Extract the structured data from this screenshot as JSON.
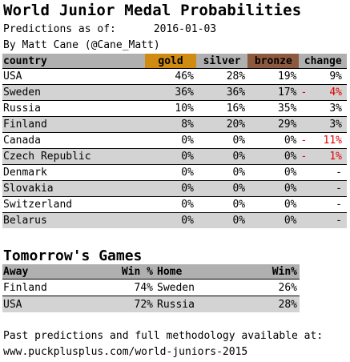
{
  "title": "World Junior Medal Probabilities",
  "predictions_label": "Predictions as of:",
  "predictions_date": "2016-01-03",
  "byline": "By Matt Cane (@Cane_Matt)",
  "colors": {
    "gold": "#d08b12",
    "bronze": "#8e5a3f",
    "header": "#b0b0b0",
    "alt_row": "#d3d3d3",
    "negative": "#e00000"
  },
  "medals": {
    "headers": {
      "country": "country",
      "gold": "gold",
      "silver": "silver",
      "bronze": "bronze",
      "change": "change"
    },
    "rows": [
      {
        "country": "USA",
        "gold": "46%",
        "silver": "28%",
        "bronze": "19%",
        "change_sign": "",
        "change": "9%",
        "negative": false
      },
      {
        "country": "Sweden",
        "gold": "36%",
        "silver": "36%",
        "bronze": "17%",
        "change_sign": "-",
        "change": "4%",
        "negative": true
      },
      {
        "country": "Russia",
        "gold": "10%",
        "silver": "16%",
        "bronze": "35%",
        "change_sign": "",
        "change": "3%",
        "negative": false
      },
      {
        "country": "Finland",
        "gold": "8%",
        "silver": "20%",
        "bronze": "29%",
        "change_sign": "",
        "change": "3%",
        "negative": false
      },
      {
        "country": "Canada",
        "gold": "0%",
        "silver": "0%",
        "bronze": "0%",
        "change_sign": "-",
        "change": "11%",
        "negative": true
      },
      {
        "country": "Czech Republic",
        "gold": "0%",
        "silver": "0%",
        "bronze": "0%",
        "change_sign": "-",
        "change": "1%",
        "negative": true
      },
      {
        "country": "Denmark",
        "gold": "0%",
        "silver": "0%",
        "bronze": "0%",
        "change_sign": "",
        "change": "-",
        "negative": false
      },
      {
        "country": "Slovakia",
        "gold": "0%",
        "silver": "0%",
        "bronze": "0%",
        "change_sign": "",
        "change": "-",
        "negative": false
      },
      {
        "country": "Switzerland",
        "gold": "0%",
        "silver": "0%",
        "bronze": "0%",
        "change_sign": "",
        "change": "-",
        "negative": false
      },
      {
        "country": "Belarus",
        "gold": "0%",
        "silver": "0%",
        "bronze": "0%",
        "change_sign": "",
        "change": "-",
        "negative": false
      }
    ]
  },
  "games": {
    "title": "Tomorrow's Games",
    "headers": {
      "away": "Away",
      "away_win": "Win %",
      "home": "Home",
      "home_win": "Win%"
    },
    "rows": [
      {
        "away": "Finland",
        "away_win": "74%",
        "home": "Sweden",
        "home_win": "26%"
      },
      {
        "away": "USA",
        "away_win": "72%",
        "home": "Russia",
        "home_win": "28%"
      }
    ]
  },
  "footer": {
    "line1": "Past predictions and full methodology available at:",
    "line2": "www.puckplusplus.com/world-juniors-2015"
  }
}
